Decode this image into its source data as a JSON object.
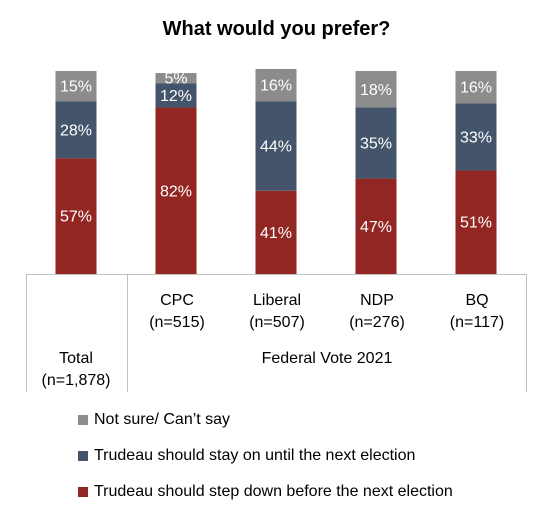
{
  "chart_data": {
    "type": "bar",
    "stacked": true,
    "title": "What would you prefer?",
    "categories": [
      {
        "line1": "Total",
        "line2": "(n=1,878)"
      },
      {
        "line1": "CPC",
        "line2": "(n=515)"
      },
      {
        "line1": "Liberal",
        "line2": "(n=507)"
      },
      {
        "line1": "NDP",
        "line2": "(n=276)"
      },
      {
        "line1": "BQ",
        "line2": "(n=117)"
      }
    ],
    "group_label": "Federal Vote 2021",
    "series": [
      {
        "name": "Trudeau should step down before the next election",
        "color": "#922623",
        "values": [
          57,
          82,
          41,
          47,
          51
        ],
        "labels": [
          "57%",
          "82%",
          "41%",
          "47%",
          "51%"
        ]
      },
      {
        "name": "Trudeau should stay on until the next election",
        "color": "#44546A",
        "values": [
          28,
          12,
          44,
          35,
          33
        ],
        "labels": [
          "28%",
          "12%",
          "44%",
          "35%",
          "33%"
        ]
      },
      {
        "name": "Not sure/ Can’t say",
        "color": "#8C8C8C",
        "values": [
          15,
          5,
          16,
          18,
          16
        ],
        "labels": [
          "15%",
          "5%",
          "16%",
          "18%",
          "16%"
        ]
      }
    ],
    "ylim": [
      0,
      100
    ],
    "grid": false,
    "legend_position": "bottom-left"
  },
  "legend_order": [
    2,
    1,
    0
  ]
}
